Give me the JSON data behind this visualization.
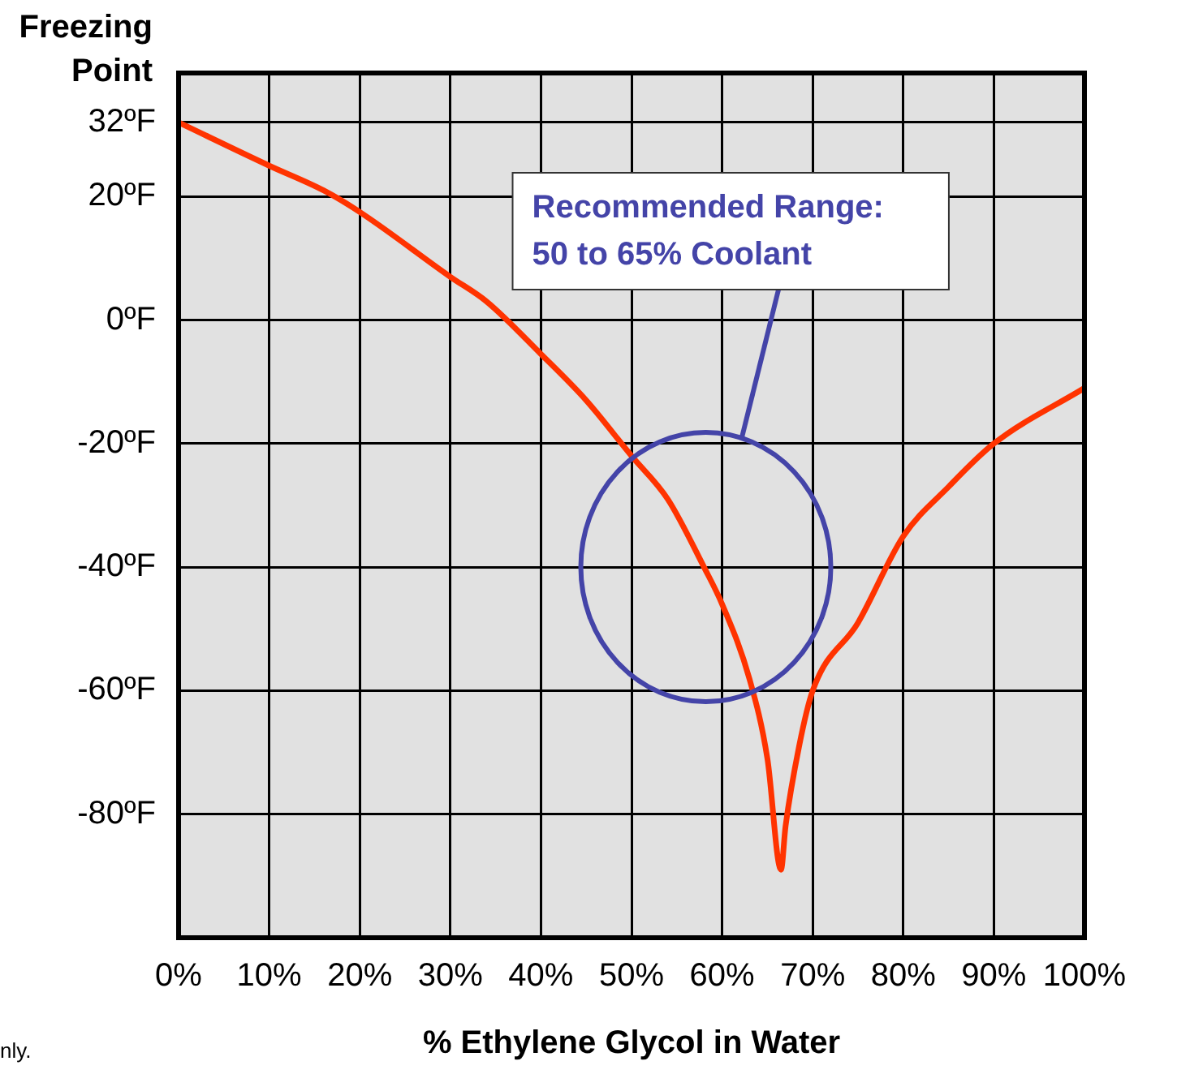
{
  "chart_data": {
    "type": "line",
    "xlabel": "% Ethylene Glycol in Water",
    "ylabel": "Freezing Point",
    "x": [
      0,
      10,
      16,
      20,
      30,
      34,
      40,
      45,
      50,
      54,
      58,
      60,
      63,
      65,
      66.5,
      67,
      68.5,
      70,
      75,
      80,
      85,
      90,
      100
    ],
    "series": [
      {
        "color": "#ff3300",
        "values": [
          32,
          25,
          21,
          17.5,
          7,
          3,
          -5.5,
          -13,
          -22,
          -29,
          -40,
          -46,
          -58,
          -71,
          -89,
          -82,
          -69,
          -60,
          -49,
          -35,
          -27,
          -20,
          -11
        ]
      }
    ],
    "xlim": [
      0,
      100
    ],
    "xticks": [
      {
        "value": 0,
        "label": "0%"
      },
      {
        "value": 10,
        "label": "10%"
      },
      {
        "value": 20,
        "label": "20%"
      },
      {
        "value": 30,
        "label": "30%"
      },
      {
        "value": 40,
        "label": "40%"
      },
      {
        "value": 50,
        "label": "50%"
      },
      {
        "value": 60,
        "label": "60%"
      },
      {
        "value": 70,
        "label": "70%"
      },
      {
        "value": 80,
        "label": "80%"
      },
      {
        "value": 90,
        "label": "90%"
      },
      {
        "value": 100,
        "label": "100%"
      }
    ],
    "ylim": [
      -100,
      40
    ],
    "yticks": [
      {
        "value": -100,
        "label": null
      },
      {
        "value": -80,
        "label": "-80ºF"
      },
      {
        "value": -60,
        "label": "-60ºF"
      },
      {
        "value": -40,
        "label": "-40ºF"
      },
      {
        "value": -20,
        "label": "-20ºF"
      },
      {
        "value": 0,
        "label": "0ºF"
      },
      {
        "value": 20,
        "label": "20ºF"
      },
      {
        "value": 32,
        "label": "32ºF"
      },
      {
        "value": 40,
        "label": null
      }
    ],
    "grid": true,
    "legend": false,
    "marker": "none",
    "line_style": "solid",
    "annotations": [
      "Recommended Range:\n50 to 65% Coolant",
      "nly."
    ]
  }
}
